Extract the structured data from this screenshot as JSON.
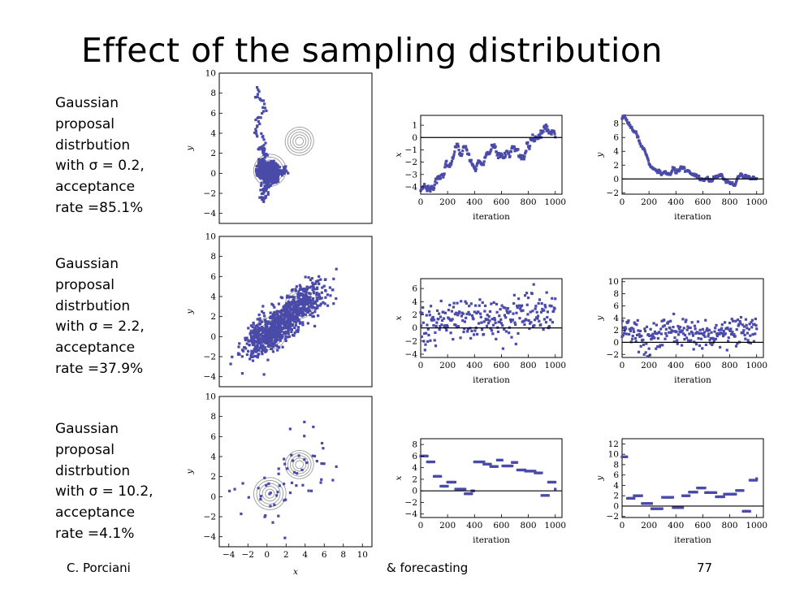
{
  "slide": {
    "title": "Effect of the sampling distribution",
    "footer_left": "C. Porciani",
    "footer_center": "& forecasting",
    "page_number": "77"
  },
  "rows": [
    {
      "caption": [
        "Gaussian",
        "proposal",
        "distrbution",
        "with  σ = 0.2,",
        "acceptance",
        "rate =85.1%"
      ]
    },
    {
      "caption": [
        "Gaussian",
        "proposal",
        "distrbution",
        "with  σ = 2.2,",
        "acceptance",
        "rate =37.9%"
      ]
    },
    {
      "caption": [
        "Gaussian",
        "proposal",
        "distrbution",
        "with  σ = 10.2,",
        "acceptance",
        "rate =4.1%"
      ]
    }
  ],
  "colors": {
    "points": "#4a4aa8",
    "contours": "#9a9a9a",
    "axes": "#000000"
  },
  "chart_data": [
    {
      "type": "scatter",
      "row": 0,
      "panel": "joint",
      "xlabel": "",
      "ylabel": "y",
      "xlim": [
        -5,
        11
      ],
      "ylim": [
        -5,
        10
      ],
      "xticks": [],
      "yticks": [
        -4,
        -2,
        0,
        2,
        4,
        6,
        8,
        10
      ],
      "contours": true,
      "sampler": "walk",
      "sigma": 0.2,
      "n": 1000,
      "start": [
        -1,
        8.5
      ],
      "accept": 0.851,
      "seed": 11
    },
    {
      "type": "line",
      "row": 0,
      "panel": "trace-x",
      "xlabel": "iteration",
      "ylabel": "x",
      "xlim": [
        0,
        1050
      ],
      "ylim": [
        -4.6,
        1.8
      ],
      "xticks": [
        0,
        200,
        400,
        600,
        800,
        1000
      ],
      "yticks": [
        -4,
        -3,
        -2,
        -1,
        0,
        1
      ],
      "trend": [
        [
          0,
          -4
        ],
        [
          80,
          -3.2
        ],
        [
          220,
          -1.8
        ],
        [
          300,
          -1.2
        ],
        [
          420,
          -2.3
        ],
        [
          520,
          -1
        ],
        [
          640,
          -1.8
        ],
        [
          760,
          -0.8
        ],
        [
          880,
          1
        ],
        [
          1000,
          0
        ]
      ],
      "noise": 0.55,
      "style": "walk",
      "seed": 3
    },
    {
      "type": "line",
      "row": 0,
      "panel": "trace-y",
      "xlabel": "iteration",
      "ylabel": "y",
      "xlim": [
        0,
        1050
      ],
      "ylim": [
        -2.2,
        9.2
      ],
      "xticks": [
        0,
        200,
        400,
        600,
        800,
        1000
      ],
      "yticks": [
        -2,
        0,
        2,
        4,
        6,
        8
      ],
      "trend": [
        [
          0,
          8.5
        ],
        [
          80,
          6.5
        ],
        [
          180,
          2
        ],
        [
          230,
          0.3
        ],
        [
          350,
          1
        ],
        [
          450,
          1.3
        ],
        [
          560,
          0.5
        ],
        [
          700,
          0
        ],
        [
          1000,
          -0.2
        ]
      ],
      "noise": 0.45,
      "style": "walk",
      "seed": 7
    },
    {
      "type": "scatter",
      "row": 1,
      "panel": "joint",
      "xlabel": "",
      "ylabel": "y",
      "xlim": [
        -5,
        11
      ],
      "ylim": [
        -5,
        10
      ],
      "xticks": [],
      "yticks": [
        -4,
        -2,
        0,
        2,
        4,
        6,
        8,
        10
      ],
      "contours": true,
      "sampler": "cloud",
      "sigma": 2.2,
      "n": 900,
      "accept": 0.379,
      "seed": 5
    },
    {
      "type": "scatter",
      "row": 1,
      "panel": "trace-x",
      "xlabel": "iteration",
      "ylabel": "x",
      "xlim": [
        0,
        1050
      ],
      "ylim": [
        -4.5,
        7.5
      ],
      "xticks": [
        0,
        200,
        400,
        600,
        800,
        1000
      ],
      "yticks": [
        -4,
        -2,
        0,
        2,
        4,
        6
      ],
      "trend": [
        [
          0,
          0
        ],
        [
          200,
          1
        ],
        [
          400,
          1.3
        ],
        [
          600,
          1.3
        ],
        [
          800,
          2.5
        ],
        [
          1000,
          2
        ]
      ],
      "noise": 2.4,
      "style": "scatter",
      "seed": 9
    },
    {
      "type": "scatter",
      "row": 1,
      "panel": "trace-y",
      "xlabel": "iteration",
      "ylabel": "y",
      "xlim": [
        0,
        1050
      ],
      "ylim": [
        -2.5,
        10.5
      ],
      "xticks": [
        0,
        200,
        400,
        600,
        800,
        1000
      ],
      "yticks": [
        -2,
        0,
        2,
        4,
        6,
        8,
        10
      ],
      "trend": [
        [
          0,
          3
        ],
        [
          150,
          0.4
        ],
        [
          350,
          1.8
        ],
        [
          600,
          1.2
        ],
        [
          800,
          2
        ],
        [
          1000,
          2
        ]
      ],
      "noise": 1.8,
      "style": "scatter",
      "seed": 13
    },
    {
      "type": "scatter",
      "row": 2,
      "panel": "joint",
      "xlabel": "x",
      "ylabel": "y",
      "xlim": [
        -5,
        11
      ],
      "ylim": [
        -5,
        10
      ],
      "xticks": [
        -4,
        -2,
        0,
        2,
        4,
        6,
        8,
        10
      ],
      "yticks": [
        -4,
        -2,
        0,
        2,
        4,
        6,
        8,
        10
      ],
      "contours": true,
      "sampler": "sparse",
      "sigma": 10.2,
      "n": 60,
      "accept": 0.041,
      "seed": 17
    },
    {
      "type": "scatter",
      "row": 2,
      "panel": "trace-x",
      "xlabel": "iteration",
      "ylabel": "x",
      "xlim": [
        0,
        1050
      ],
      "ylim": [
        -4.6,
        9
      ],
      "xticks": [
        0,
        200,
        400,
        600,
        800,
        1000
      ],
      "yticks": [
        -4,
        -2,
        0,
        2,
        4,
        6,
        8
      ],
      "steps": [
        [
          0,
          6
        ],
        [
          50,
          5
        ],
        [
          100,
          2.5
        ],
        [
          150,
          0.8
        ],
        [
          200,
          1.5
        ],
        [
          260,
          0.3
        ],
        [
          330,
          -0.5
        ],
        [
          380,
          0
        ],
        [
          400,
          5
        ],
        [
          470,
          4.6
        ],
        [
          520,
          4.2
        ],
        [
          570,
          5.3
        ],
        [
          610,
          4.3
        ],
        [
          680,
          4.9
        ],
        [
          720,
          3.6
        ],
        [
          780,
          3.4
        ],
        [
          850,
          3.1
        ],
        [
          900,
          -0.8
        ],
        [
          950,
          1.5
        ],
        [
          1000,
          0.3
        ]
      ],
      "style": "steps"
    },
    {
      "type": "scatter",
      "row": 2,
      "panel": "trace-y",
      "xlabel": "iteration",
      "ylabel": "y",
      "xlim": [
        0,
        1050
      ],
      "ylim": [
        -2.2,
        13
      ],
      "xticks": [
        0,
        200,
        400,
        600,
        800,
        1000
      ],
      "yticks": [
        -2,
        0,
        2,
        4,
        6,
        8,
        10,
        12
      ],
      "steps": [
        [
          0,
          9.5
        ],
        [
          40,
          1.5
        ],
        [
          90,
          2
        ],
        [
          150,
          0.5
        ],
        [
          220,
          -0.5
        ],
        [
          300,
          1.7
        ],
        [
          380,
          -0.3
        ],
        [
          450,
          2
        ],
        [
          500,
          2.7
        ],
        [
          560,
          3.5
        ],
        [
          620,
          2.6
        ],
        [
          700,
          1.8
        ],
        [
          760,
          2.3
        ],
        [
          850,
          3
        ],
        [
          900,
          -1
        ],
        [
          950,
          5
        ],
        [
          1000,
          5.3
        ]
      ],
      "style": "steps"
    }
  ]
}
